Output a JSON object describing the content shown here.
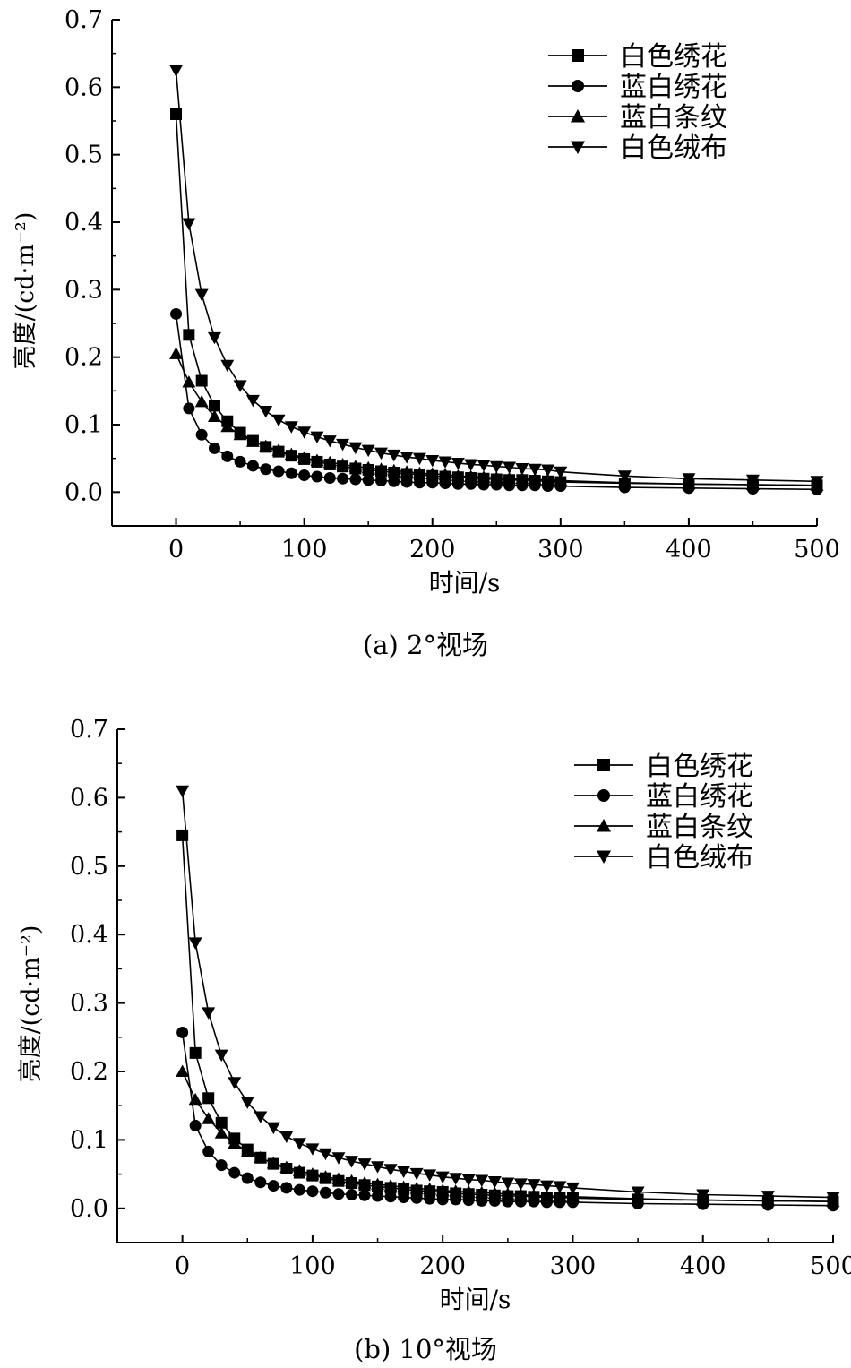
{
  "chart_data": [
    {
      "type": "line",
      "caption": "(a) 2°视场",
      "xlabel": "时间/s",
      "ylabel": "亮度/(cd·m⁻²)",
      "xlim": [
        -50,
        500
      ],
      "ylim": [
        -0.05,
        0.7
      ],
      "xticks": [
        0,
        100,
        200,
        300,
        400,
        500
      ],
      "yticks": [
        "0.0",
        "0.1",
        "0.2",
        "0.3",
        "0.4",
        "0.5",
        "0.6",
        "0.7"
      ],
      "legend_position": "top-right",
      "series": [
        {
          "name": "白色绣花",
          "marker": "square",
          "x": [
            0,
            10,
            20,
            30,
            40,
            50,
            60,
            70,
            80,
            90,
            100,
            110,
            120,
            130,
            140,
            150,
            160,
            170,
            180,
            190,
            200,
            210,
            220,
            230,
            240,
            250,
            260,
            270,
            280,
            290,
            300,
            350,
            400,
            450,
            500
          ],
          "y": [
            0.56,
            0.233,
            0.165,
            0.128,
            0.105,
            0.088,
            0.076,
            0.067,
            0.06,
            0.054,
            0.049,
            0.045,
            0.041,
            0.038,
            0.035,
            0.033,
            0.031,
            0.029,
            0.027,
            0.026,
            0.024,
            0.023,
            0.022,
            0.021,
            0.02,
            0.019,
            0.018,
            0.018,
            0.017,
            0.016,
            0.015,
            0.013,
            0.012,
            0.011,
            0.01
          ]
        },
        {
          "name": "蓝白绣花",
          "marker": "circle",
          "x": [
            0,
            10,
            20,
            30,
            40,
            50,
            60,
            70,
            80,
            90,
            100,
            110,
            120,
            130,
            140,
            150,
            160,
            170,
            180,
            190,
            200,
            210,
            220,
            230,
            240,
            250,
            260,
            270,
            280,
            290,
            300,
            350,
            400,
            450,
            500
          ],
          "y": [
            0.264,
            0.124,
            0.085,
            0.065,
            0.053,
            0.045,
            0.039,
            0.034,
            0.031,
            0.028,
            0.025,
            0.023,
            0.021,
            0.02,
            0.019,
            0.018,
            0.017,
            0.016,
            0.015,
            0.014,
            0.014,
            0.013,
            0.012,
            0.012,
            0.011,
            0.011,
            0.01,
            0.01,
            0.01,
            0.009,
            0.009,
            0.007,
            0.006,
            0.005,
            0.004
          ]
        },
        {
          "name": "蓝白条纹",
          "marker": "triangle-up",
          "x": [
            0,
            10,
            20,
            30,
            40,
            50,
            60,
            70,
            80,
            90,
            100,
            110,
            120,
            130,
            140,
            150,
            160,
            170,
            180,
            190,
            200,
            210,
            220,
            230,
            240,
            250,
            260,
            270,
            280,
            290,
            300,
            350,
            400,
            450,
            500
          ],
          "y": [
            0.205,
            0.163,
            0.134,
            0.112,
            0.097,
            0.085,
            0.075,
            0.068,
            0.062,
            0.056,
            0.051,
            0.047,
            0.044,
            0.041,
            0.038,
            0.036,
            0.034,
            0.032,
            0.03,
            0.028,
            0.027,
            0.026,
            0.024,
            0.023,
            0.022,
            0.021,
            0.02,
            0.02,
            0.019,
            0.018,
            0.017,
            0.014,
            0.012,
            0.011,
            0.01
          ]
        },
        {
          "name": "白色绒布",
          "marker": "triangle-down",
          "x": [
            0,
            10,
            20,
            30,
            40,
            50,
            60,
            70,
            80,
            90,
            100,
            110,
            120,
            130,
            140,
            150,
            160,
            170,
            180,
            190,
            200,
            210,
            220,
            230,
            240,
            250,
            260,
            270,
            280,
            290,
            300,
            350,
            400,
            450,
            500
          ],
          "y": [
            0.625,
            0.398,
            0.293,
            0.229,
            0.188,
            0.158,
            0.136,
            0.12,
            0.107,
            0.097,
            0.089,
            0.082,
            0.076,
            0.071,
            0.066,
            0.062,
            0.058,
            0.055,
            0.052,
            0.05,
            0.047,
            0.045,
            0.043,
            0.041,
            0.04,
            0.038,
            0.037,
            0.035,
            0.034,
            0.033,
            0.03,
            0.024,
            0.02,
            0.018,
            0.016
          ]
        }
      ]
    },
    {
      "type": "line",
      "caption": "(b) 10°视场",
      "xlabel": "时间/s",
      "ylabel": "亮度/(cd·m⁻²)",
      "xlim": [
        -50,
        500
      ],
      "ylim": [
        -0.05,
        0.7
      ],
      "xticks": [
        0,
        100,
        200,
        300,
        400,
        500
      ],
      "yticks": [
        "0.0",
        "0.1",
        "0.2",
        "0.3",
        "0.4",
        "0.5",
        "0.6",
        "0.7"
      ],
      "legend_position": "top-right",
      "series": [
        {
          "name": "白色绣花",
          "marker": "square",
          "x": [
            0,
            10,
            20,
            30,
            40,
            50,
            60,
            70,
            80,
            90,
            100,
            110,
            120,
            130,
            140,
            150,
            160,
            170,
            180,
            190,
            200,
            210,
            220,
            230,
            240,
            250,
            260,
            270,
            280,
            290,
            300,
            350,
            400,
            450,
            500
          ],
          "y": [
            0.545,
            0.227,
            0.161,
            0.125,
            0.102,
            0.086,
            0.074,
            0.065,
            0.058,
            0.052,
            0.048,
            0.044,
            0.04,
            0.037,
            0.034,
            0.032,
            0.03,
            0.028,
            0.026,
            0.025,
            0.024,
            0.022,
            0.021,
            0.02,
            0.019,
            0.018,
            0.018,
            0.017,
            0.016,
            0.016,
            0.015,
            0.013,
            0.012,
            0.011,
            0.01
          ]
        },
        {
          "name": "蓝白绣花",
          "marker": "circle",
          "x": [
            0,
            10,
            20,
            30,
            40,
            50,
            60,
            70,
            80,
            90,
            100,
            110,
            120,
            130,
            140,
            150,
            160,
            170,
            180,
            190,
            200,
            210,
            220,
            230,
            240,
            250,
            260,
            270,
            280,
            290,
            300,
            350,
            400,
            450,
            500
          ],
          "y": [
            0.257,
            0.121,
            0.083,
            0.063,
            0.052,
            0.044,
            0.038,
            0.033,
            0.03,
            0.027,
            0.025,
            0.023,
            0.021,
            0.02,
            0.019,
            0.018,
            0.017,
            0.016,
            0.015,
            0.014,
            0.013,
            0.013,
            0.012,
            0.011,
            0.011,
            0.01,
            0.01,
            0.01,
            0.009,
            0.009,
            0.009,
            0.007,
            0.006,
            0.005,
            0.004
          ]
        },
        {
          "name": "蓝白条纹",
          "marker": "triangle-up",
          "x": [
            0,
            10,
            20,
            30,
            40,
            50,
            60,
            70,
            80,
            90,
            100,
            110,
            120,
            130,
            140,
            150,
            160,
            170,
            180,
            190,
            200,
            210,
            220,
            230,
            240,
            250,
            260,
            270,
            280,
            290,
            300,
            350,
            400,
            450,
            500
          ],
          "y": [
            0.2,
            0.159,
            0.131,
            0.11,
            0.095,
            0.083,
            0.074,
            0.066,
            0.06,
            0.055,
            0.05,
            0.046,
            0.043,
            0.04,
            0.037,
            0.035,
            0.033,
            0.031,
            0.029,
            0.028,
            0.026,
            0.025,
            0.024,
            0.023,
            0.022,
            0.021,
            0.02,
            0.019,
            0.018,
            0.018,
            0.017,
            0.014,
            0.012,
            0.011,
            0.01
          ]
        },
        {
          "name": "白色绒布",
          "marker": "triangle-down",
          "x": [
            0,
            10,
            20,
            30,
            40,
            50,
            60,
            70,
            80,
            90,
            100,
            110,
            120,
            130,
            140,
            150,
            160,
            170,
            180,
            190,
            200,
            210,
            220,
            230,
            240,
            250,
            260,
            270,
            280,
            290,
            300,
            350,
            400,
            450,
            500
          ],
          "y": [
            0.61,
            0.388,
            0.286,
            0.224,
            0.184,
            0.155,
            0.134,
            0.118,
            0.105,
            0.095,
            0.087,
            0.08,
            0.074,
            0.069,
            0.065,
            0.061,
            0.057,
            0.054,
            0.051,
            0.049,
            0.046,
            0.044,
            0.042,
            0.041,
            0.039,
            0.037,
            0.036,
            0.035,
            0.033,
            0.032,
            0.03,
            0.024,
            0.02,
            0.018,
            0.016
          ]
        }
      ]
    }
  ]
}
